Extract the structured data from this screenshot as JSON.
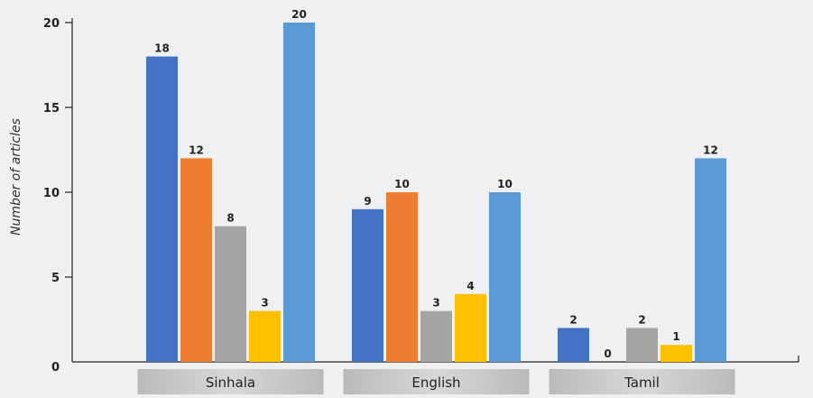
{
  "chart_data": {
    "type": "bar",
    "categories": [
      "Sinhala",
      "English",
      "Tamil"
    ],
    "series": [
      {
        "values": [
          18,
          9,
          2
        ],
        "color": "#4472c4"
      },
      {
        "values": [
          12,
          10,
          0
        ],
        "color": "#ed7d31"
      },
      {
        "values": [
          8,
          3,
          2
        ],
        "color": "#a5a5a5"
      },
      {
        "values": [
          3,
          4,
          1
        ],
        "color": "#ffc000"
      },
      {
        "values": [
          20,
          10,
          12
        ],
        "color": "#5b9bd5"
      }
    ],
    "ylabel": "Number of articles",
    "ylim": [
      0,
      20
    ],
    "yticks": [
      0,
      5,
      10,
      15,
      20
    ],
    "grid": false,
    "legend": "none"
  }
}
